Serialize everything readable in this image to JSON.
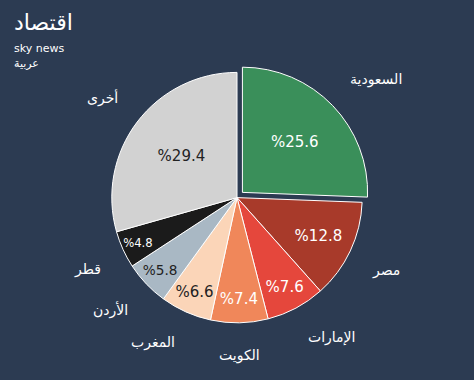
{
  "chart_data": {
    "type": "pie",
    "categories": [
      "السعودية",
      "مصر",
      "الإمارات",
      "الكويت",
      "المغرب",
      "الأردن",
      "قطر",
      "أخرى"
    ],
    "values": [
      25.6,
      12.8,
      7.6,
      7.4,
      6.6,
      5.8,
      4.8,
      29.4
    ],
    "value_labels": [
      "%25.6",
      "%12.8",
      "%7.6",
      "%7.4",
      "%6.6",
      "%5.8",
      "%4.8",
      "%29.4"
    ],
    "colors": [
      "#3a8f5a",
      "#a83a2a",
      "#e5473c",
      "#f0875a",
      "#fbd5b8",
      "#a9b8c4",
      "#1b1b1b",
      "#d2d2d2"
    ],
    "data_labels": true,
    "annotations": [
      "اقتصاد",
      "sky news",
      "عربية"
    ]
  }
}
